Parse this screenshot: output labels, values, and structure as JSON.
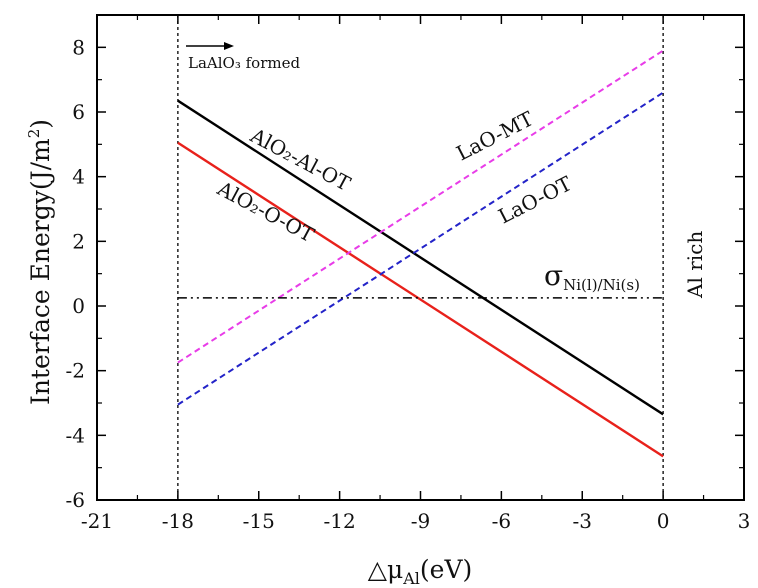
{
  "chart_data": {
    "type": "line",
    "title": "",
    "xlabel": "△μ",
    "xlabel_sub": "Al",
    "xlabel_suffix": "(eV)",
    "ylabel": "Interface Energy(J/m",
    "ylabel_sup": "2",
    "ylabel_suffix": ")",
    "xlim": [
      -21,
      3
    ],
    "ylim": [
      -6,
      9
    ],
    "xticks": [
      -21,
      -18,
      -15,
      -12,
      -9,
      -6,
      -3,
      0,
      3
    ],
    "yticks": [
      -6,
      -4,
      -2,
      0,
      2,
      4,
      6,
      8
    ],
    "grid": false,
    "series": [
      {
        "name": "AlO₂-Al-OT",
        "color": "#000000",
        "dash": "solid",
        "x": [
          -18,
          0
        ],
        "y": [
          6.35,
          -3.35
        ]
      },
      {
        "name": "AlO₂-O-OT",
        "color": "#e8211b",
        "dash": "solid",
        "x": [
          -18,
          0
        ],
        "y": [
          5.05,
          -4.65
        ]
      },
      {
        "name": "LaO-MT",
        "color": "#e83ce8",
        "dash": "dashed",
        "x": [
          -18,
          0
        ],
        "y": [
          -1.75,
          7.9
        ]
      },
      {
        "name": "LaO-OT",
        "color": "#2323c8",
        "dash": "dashed",
        "x": [
          -18,
          0
        ],
        "y": [
          -3.05,
          6.6
        ]
      },
      {
        "name": "σNi(l)/Ni(s)",
        "color": "#000000",
        "dash": "dashdotdot",
        "x": [
          -18,
          0
        ],
        "y": [
          0.25,
          0.25
        ]
      }
    ],
    "vlines": [
      {
        "x": -18,
        "label": "LaAlO₃ formed"
      },
      {
        "x": 0,
        "label": "Al rich"
      }
    ],
    "annotations": {
      "alo2_al_ot": "AlO₂-Al-OT",
      "alo2_o_ot": "AlO₂-O-OT",
      "lao_mt": "LaO-MT",
      "lao_ot": "LaO-OT",
      "sigma_symbol": "σ",
      "sigma_sub": "Ni(l)/Ni(s)",
      "lalo3": "LaAlO₃ formed",
      "al_rich": "Al rich"
    }
  }
}
